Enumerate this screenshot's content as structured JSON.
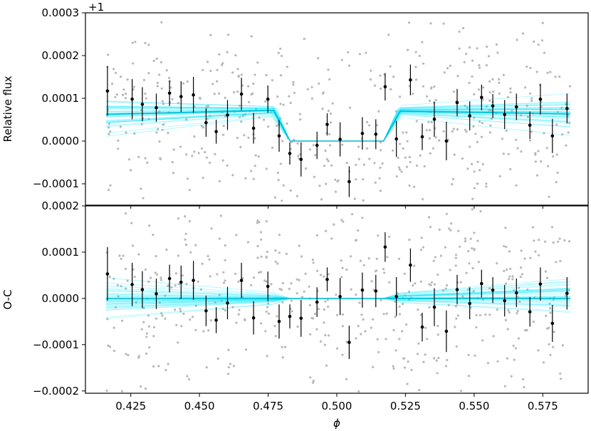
{
  "chart_data": [
    {
      "type": "scatter",
      "panel": "top",
      "ylabel": "Relative flux",
      "offset_label": "+1",
      "ylim": [
        -0.00015,
        0.0003
      ],
      "xlim": [
        0.4085,
        0.5915
      ],
      "yticks": [
        -0.0001,
        0.0,
        0.0001,
        0.0002,
        0.0003
      ],
      "ytick_labels": [
        "−0.0001",
        "0.0000",
        "0.0001",
        "0.0002",
        "0.0003"
      ],
      "xtick_labels_shown": false,
      "colors": {
        "model": "#00bcd4",
        "model_samples": "#00e5ff",
        "binned": "#000000",
        "raw": "#b0b0b0"
      },
      "model": {
        "name": "transit model",
        "x": [
          0.416,
          0.477,
          0.483,
          0.517,
          0.523,
          0.585
        ],
        "y": [
          6.3e-05,
          7.2e-05,
          0.0,
          0.0,
          7e-05,
          6.3e-05
        ]
      },
      "binned": [
        {
          "x": 0.4165,
          "y": 0.000117,
          "err": 5.8e-05
        },
        {
          "x": 0.4255,
          "y": 9.8e-05,
          "err": 4.7e-05
        },
        {
          "x": 0.4292,
          "y": 8.6e-05,
          "err": 4e-05
        },
        {
          "x": 0.4343,
          "y": 7.8e-05,
          "err": 3.3e-05
        },
        {
          "x": 0.4391,
          "y": 0.000112,
          "err": 3e-05
        },
        {
          "x": 0.4433,
          "y": 0.000104,
          "err": 3.6e-05
        },
        {
          "x": 0.4478,
          "y": 0.000108,
          "err": 4.2e-05
        },
        {
          "x": 0.4524,
          "y": 4.3e-05,
          "err": 3.3e-05
        },
        {
          "x": 0.4561,
          "y": 2.2e-05,
          "err": 2.8e-05
        },
        {
          "x": 0.4602,
          "y": 6.1e-05,
          "err": 3.5e-05
        },
        {
          "x": 0.4653,
          "y": 0.00011,
          "err": 3.8e-05
        },
        {
          "x": 0.4697,
          "y": 3e-05,
          "err": 3.6e-05
        },
        {
          "x": 0.4749,
          "y": 9.8e-05,
          "err": 3.2e-05
        },
        {
          "x": 0.479,
          "y": 1.2e-05,
          "err": 3.7e-05
        },
        {
          "x": 0.4829,
          "y": -2.9e-05,
          "err": 2.6e-05
        },
        {
          "x": 0.487,
          "y": -4.3e-05,
          "err": 4e-05
        },
        {
          "x": 0.4928,
          "y": -1e-05,
          "err": 3.2e-05
        },
        {
          "x": 0.4965,
          "y": 3.9e-05,
          "err": 2.6e-05
        },
        {
          "x": 0.5012,
          "y": 4e-06,
          "err": 4e-05
        },
        {
          "x": 0.5045,
          "y": -9.5e-05,
          "err": 3.6e-05
        },
        {
          "x": 0.5093,
          "y": 1.8e-05,
          "err": 3.8e-05
        },
        {
          "x": 0.5142,
          "y": 1.6e-05,
          "err": 3.5e-05
        },
        {
          "x": 0.5176,
          "y": 0.000127,
          "err": 3.2e-05
        },
        {
          "x": 0.5217,
          "y": 5e-06,
          "err": 4.2e-05
        },
        {
          "x": 0.5268,
          "y": 0.000143,
          "err": 3.6e-05
        },
        {
          "x": 0.5311,
          "y": 1e-05,
          "err": 3.1e-05
        },
        {
          "x": 0.5355,
          "y": 5.1e-05,
          "err": 4.1e-05
        },
        {
          "x": 0.5399,
          "y": 0.0,
          "err": 4.5e-05
        },
        {
          "x": 0.5438,
          "y": 9e-05,
          "err": 3.2e-05
        },
        {
          "x": 0.5484,
          "y": 5.9e-05,
          "err": 3.4e-05
        },
        {
          "x": 0.5527,
          "y": 0.000102,
          "err": 3e-05
        },
        {
          "x": 0.5568,
          "y": 8.2e-05,
          "err": 2.8e-05
        },
        {
          "x": 0.5611,
          "y": 6.2e-05,
          "err": 3.4e-05
        },
        {
          "x": 0.5654,
          "y": 8e-05,
          "err": 3.1e-05
        },
        {
          "x": 0.5703,
          "y": 3.7e-05,
          "err": 3.2e-05
        },
        {
          "x": 0.5741,
          "y": 9.8e-05,
          "err": 3.6e-05
        },
        {
          "x": 0.5785,
          "y": 1.2e-05,
          "err": 4e-05
        },
        {
          "x": 0.5838,
          "y": 7.6e-05,
          "err": 3.5e-05
        }
      ]
    },
    {
      "type": "scatter",
      "panel": "bottom",
      "ylabel": "O-C",
      "xlabel": "ϕ",
      "ylim": [
        -0.000205,
        0.0002
      ],
      "xlim": [
        0.4085,
        0.5915
      ],
      "yticks": [
        -0.0002,
        -0.0001,
        0.0,
        0.0001,
        0.0002
      ],
      "ytick_labels": [
        "−0.0002",
        "−0.0001",
        "0.0000",
        "0.0001",
        "0.0002"
      ],
      "xticks": [
        0.425,
        0.45,
        0.475,
        0.5,
        0.525,
        0.55,
        0.575
      ],
      "xtick_labels": [
        "0.425",
        "0.450",
        "0.475",
        "0.500",
        "0.525",
        "0.550",
        "0.575"
      ],
      "zero_line": {
        "x": [
          0.416,
          0.585
        ],
        "y": [
          0.0,
          0.0
        ]
      },
      "binned": [
        {
          "x": 0.4165,
          "y": 5.3e-05,
          "err": 5.8e-05
        },
        {
          "x": 0.4255,
          "y": 3e-05,
          "err": 4.7e-05
        },
        {
          "x": 0.4292,
          "y": 1.9e-05,
          "err": 4e-05
        },
        {
          "x": 0.4343,
          "y": 1e-05,
          "err": 3.3e-05
        },
        {
          "x": 0.4391,
          "y": 4.3e-05,
          "err": 3e-05
        },
        {
          "x": 0.4433,
          "y": 3.5e-05,
          "err": 3.6e-05
        },
        {
          "x": 0.4478,
          "y": 3.9e-05,
          "err": 4.2e-05
        },
        {
          "x": 0.4524,
          "y": -2.7e-05,
          "err": 3.3e-05
        },
        {
          "x": 0.4561,
          "y": -4.7e-05,
          "err": 2.8e-05
        },
        {
          "x": 0.4602,
          "y": -1e-05,
          "err": 3.5e-05
        },
        {
          "x": 0.4653,
          "y": 3.9e-05,
          "err": 3.8e-05
        },
        {
          "x": 0.4697,
          "y": -4.2e-05,
          "err": 3.6e-05
        },
        {
          "x": 0.4749,
          "y": 2.6e-05,
          "err": 3.2e-05
        },
        {
          "x": 0.479,
          "y": -5e-05,
          "err": 3.7e-05
        },
        {
          "x": 0.4829,
          "y": -3.9e-05,
          "err": 2.6e-05
        },
        {
          "x": 0.487,
          "y": -4.3e-05,
          "err": 4e-05
        },
        {
          "x": 0.4928,
          "y": -8e-06,
          "err": 3.2e-05
        },
        {
          "x": 0.4965,
          "y": 4.1e-05,
          "err": 2.6e-05
        },
        {
          "x": 0.5012,
          "y": 4e-06,
          "err": 4e-05
        },
        {
          "x": 0.5045,
          "y": -9.5e-05,
          "err": 3.6e-05
        },
        {
          "x": 0.5093,
          "y": 1.8e-05,
          "err": 3.8e-05
        },
        {
          "x": 0.5142,
          "y": 1.6e-05,
          "err": 3.5e-05
        },
        {
          "x": 0.5176,
          "y": 0.000111,
          "err": 3.2e-05
        },
        {
          "x": 0.5217,
          "y": 4e-06,
          "err": 4.2e-05
        },
        {
          "x": 0.5268,
          "y": 7.2e-05,
          "err": 3.6e-05
        },
        {
          "x": 0.5311,
          "y": -6.2e-05,
          "err": 3.1e-05
        },
        {
          "x": 0.5355,
          "y": -1.9e-05,
          "err": 4.1e-05
        },
        {
          "x": 0.5399,
          "y": -7.1e-05,
          "err": 4.5e-05
        },
        {
          "x": 0.5438,
          "y": 1.9e-05,
          "err": 3.2e-05
        },
        {
          "x": 0.5484,
          "y": -1.1e-05,
          "err": 3.4e-05
        },
        {
          "x": 0.5527,
          "y": 3.2e-05,
          "err": 3e-05
        },
        {
          "x": 0.5568,
          "y": 1.8e-05,
          "err": 2.8e-05
        },
        {
          "x": 0.5611,
          "y": -5e-06,
          "err": 3.4e-05
        },
        {
          "x": 0.5654,
          "y": 1.2e-05,
          "err": 3.1e-05
        },
        {
          "x": 0.5703,
          "y": -2.9e-05,
          "err": 3.2e-05
        },
        {
          "x": 0.5741,
          "y": 3.1e-05,
          "err": 3.6e-05
        },
        {
          "x": 0.5785,
          "y": -5.4e-05,
          "err": 4e-05
        },
        {
          "x": 0.5838,
          "y": 1.1e-05,
          "err": 3.5e-05
        }
      ]
    }
  ]
}
